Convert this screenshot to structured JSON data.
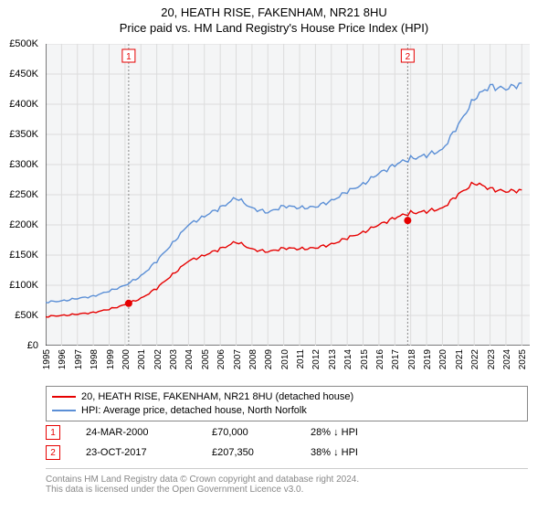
{
  "title": {
    "line1": "20, HEATH RISE, FAKENHAM, NR21 8HU",
    "line2": "Price paid vs. HM Land Registry's House Price Index (HPI)"
  },
  "chart": {
    "type": "line",
    "background_color": "#f4f5f6",
    "grid_color": "#dcdcdc",
    "ytick_labels": [
      "£0",
      "£50K",
      "£100K",
      "£150K",
      "£200K",
      "£250K",
      "£300K",
      "£350K",
      "£400K",
      "£450K",
      "£500K"
    ],
    "ylim": [
      0,
      500
    ],
    "xlim": [
      1995,
      2025.5
    ],
    "xtick_years": [
      1995,
      1996,
      1997,
      1998,
      1999,
      2000,
      2001,
      2002,
      2003,
      2004,
      2005,
      2006,
      2007,
      2008,
      2009,
      2010,
      2011,
      2012,
      2013,
      2014,
      2015,
      2016,
      2017,
      2018,
      2019,
      2020,
      2021,
      2022,
      2023,
      2024,
      2025
    ],
    "series": [
      {
        "name": "property",
        "color": "#e60000",
        "line_width": 1.4,
        "points": [
          [
            1995,
            48
          ],
          [
            1996,
            50
          ],
          [
            1997,
            52
          ],
          [
            1998,
            55
          ],
          [
            1999,
            60
          ],
          [
            2000,
            68
          ],
          [
            2001,
            78
          ],
          [
            2002,
            95
          ],
          [
            2003,
            118
          ],
          [
            2004,
            140
          ],
          [
            2005,
            150
          ],
          [
            2006,
            160
          ],
          [
            2007,
            172
          ],
          [
            2008,
            160
          ],
          [
            2009,
            155
          ],
          [
            2010,
            162
          ],
          [
            2011,
            160
          ],
          [
            2012,
            162
          ],
          [
            2013,
            168
          ],
          [
            2014,
            178
          ],
          [
            2015,
            188
          ],
          [
            2016,
            200
          ],
          [
            2017,
            212
          ],
          [
            2018,
            220
          ],
          [
            2019,
            222
          ],
          [
            2020,
            228
          ],
          [
            2021,
            250
          ],
          [
            2022,
            270
          ],
          [
            2023,
            260
          ],
          [
            2024,
            255
          ],
          [
            2025,
            258
          ]
        ]
      },
      {
        "name": "hpi",
        "color": "#5b8fd6",
        "line_width": 1.4,
        "points": [
          [
            1995,
            72
          ],
          [
            1996,
            74
          ],
          [
            1997,
            78
          ],
          [
            1998,
            82
          ],
          [
            1999,
            90
          ],
          [
            2000,
            100
          ],
          [
            2001,
            115
          ],
          [
            2002,
            140
          ],
          [
            2003,
            170
          ],
          [
            2004,
            200
          ],
          [
            2005,
            215
          ],
          [
            2006,
            228
          ],
          [
            2007,
            245
          ],
          [
            2008,
            228
          ],
          [
            2009,
            220
          ],
          [
            2010,
            232
          ],
          [
            2011,
            228
          ],
          [
            2012,
            230
          ],
          [
            2013,
            240
          ],
          [
            2014,
            255
          ],
          [
            2015,
            268
          ],
          [
            2016,
            285
          ],
          [
            2017,
            300
          ],
          [
            2018,
            310
          ],
          [
            2019,
            315
          ],
          [
            2020,
            325
          ],
          [
            2021,
            365
          ],
          [
            2022,
            410
          ],
          [
            2023,
            430
          ],
          [
            2024,
            425
          ],
          [
            2025,
            435
          ]
        ]
      }
    ],
    "sale_markers": [
      {
        "n": "1",
        "year": 2000.23,
        "price": 70,
        "color": "#e60000"
      },
      {
        "n": "2",
        "year": 2017.81,
        "price": 207.35,
        "color": "#e60000"
      }
    ],
    "marker_line_color": "#888888"
  },
  "legend": {
    "items": [
      {
        "color": "#e60000",
        "label": "20, HEATH RISE, FAKENHAM, NR21 8HU (detached house)"
      },
      {
        "color": "#5b8fd6",
        "label": "HPI: Average price, detached house, North Norfolk"
      }
    ]
  },
  "sales": [
    {
      "n": "1",
      "date": "24-MAR-2000",
      "price": "£70,000",
      "pct": "28% ↓ HPI",
      "color": "#e60000"
    },
    {
      "n": "2",
      "date": "23-OCT-2017",
      "price": "£207,350",
      "pct": "38% ↓ HPI",
      "color": "#e60000"
    }
  ],
  "footer": {
    "line1": "Contains HM Land Registry data © Crown copyright and database right 2024.",
    "line2": "This data is licensed under the Open Government Licence v3.0."
  }
}
